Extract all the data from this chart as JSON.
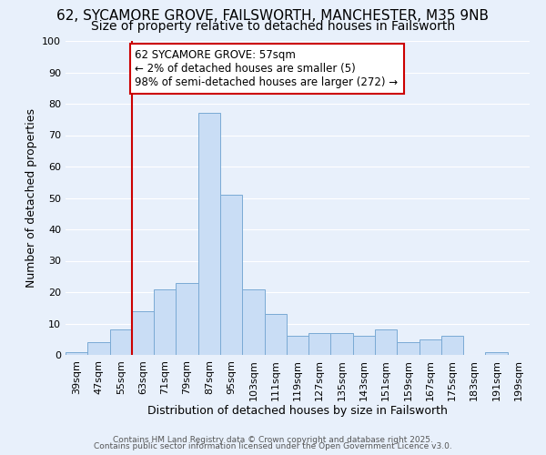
{
  "title_line1": "62, SYCAMORE GROVE, FAILSWORTH, MANCHESTER, M35 9NB",
  "title_line2": "Size of property relative to detached houses in Failsworth",
  "xlabel": "Distribution of detached houses by size in Failsworth",
  "ylabel": "Number of detached properties",
  "bar_labels": [
    "39sqm",
    "47sqm",
    "55sqm",
    "63sqm",
    "71sqm",
    "79sqm",
    "87sqm",
    "95sqm",
    "103sqm",
    "111sqm",
    "119sqm",
    "127sqm",
    "135sqm",
    "143sqm",
    "151sqm",
    "159sqm",
    "167sqm",
    "175sqm",
    "183sqm",
    "191sqm",
    "199sqm"
  ],
  "bar_values": [
    1,
    4,
    8,
    14,
    21,
    23,
    77,
    51,
    21,
    13,
    6,
    7,
    7,
    6,
    8,
    4,
    5,
    6,
    0,
    1,
    0
  ],
  "bar_color": "#c9ddf5",
  "bar_edgecolor": "#7aaad4",
  "bg_color": "#e8f0fb",
  "grid_color": "#ffffff",
  "vline_color": "#cc0000",
  "vline_pos": 2.5,
  "annotation_text": "62 SYCAMORE GROVE: 57sqm\n← 2% of detached houses are smaller (5)\n98% of semi-detached houses are larger (272) →",
  "annotation_box_edgecolor": "#cc0000",
  "annotation_box_facecolor": "#ffffff",
  "ylim": [
    0,
    100
  ],
  "yticks": [
    0,
    10,
    20,
    30,
    40,
    50,
    60,
    70,
    80,
    90,
    100
  ],
  "footer_line1": "Contains HM Land Registry data © Crown copyright and database right 2025.",
  "footer_line2": "Contains public sector information licensed under the Open Government Licence v3.0.",
  "title_fontsize": 11,
  "subtitle_fontsize": 10,
  "axis_label_fontsize": 9,
  "tick_fontsize": 8,
  "annotation_fontsize": 8.5,
  "footer_fontsize": 6.5
}
